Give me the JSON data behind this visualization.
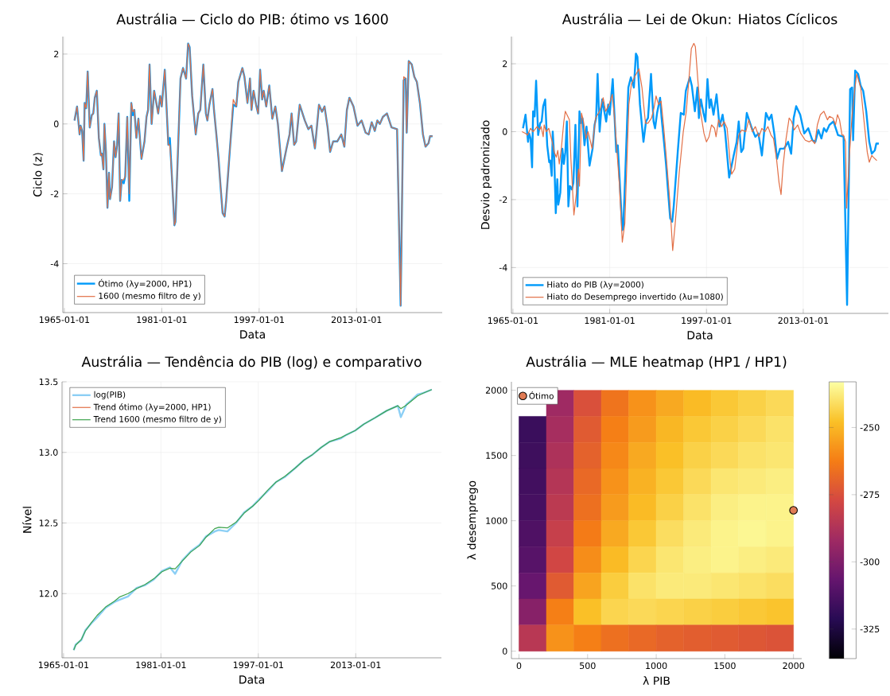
{
  "chart_data": [
    {
      "type": "line",
      "title": "Austrália — Ciclo do PIB: ótimo vs 1600",
      "xlabel": "Data",
      "ylabel": "Ciclo (z)",
      "x": [
        "1966-09",
        "1967-02",
        "1967-07",
        "1967-09",
        "1967-12",
        "1968-03",
        "1968-05",
        "1968-08",
        "1968-11",
        "1969-03",
        "1969-07",
        "1969-10",
        "1970-01",
        "1970-05",
        "1970-09",
        "1971-01",
        "1971-03",
        "1971-06",
        "1971-08",
        "1971-11",
        "1972-02",
        "1972-05",
        "1972-07",
        "1972-11",
        "1973-03",
        "1973-06",
        "1973-09",
        "1973-12",
        "1974-03",
        "1974-06",
        "1974-10",
        "1975-01",
        "1975-05",
        "1975-09",
        "1976-01",
        "1976-04",
        "1976-07",
        "1976-11",
        "1977-03",
        "1977-09",
        "1978-03",
        "1978-07",
        "1978-10",
        "1979-01",
        "1979-05",
        "1979-10",
        "1980-06",
        "1980-10",
        "1981-01",
        "1981-07",
        "1982-02",
        "1982-05",
        "1982-09",
        "1983-02",
        "1983-04",
        "1983-08",
        "1984-02",
        "1984-07",
        "1985-01",
        "1985-05",
        "1985-08",
        "1986-01",
        "1986-08",
        "1987-01",
        "1987-05",
        "1987-11",
        "1988-04",
        "1988-07",
        "1988-11",
        "1989-05",
        "1989-08",
        "1990-01",
        "1990-05",
        "1990-08",
        "1991-01",
        "1991-05",
        "1991-08",
        "1992-04",
        "1992-10",
        "1993-04",
        "1993-08",
        "1994-04",
        "1994-08",
        "1995-02",
        "1995-07",
        "1995-10",
        "1996-02",
        "1996-07",
        "1996-11",
        "1997-03",
        "1997-07",
        "1997-10",
        "1998-03",
        "1998-09",
        "1999-03",
        "1999-09",
        "2000-02",
        "2000-10",
        "2001-07",
        "2002-01",
        "2002-05",
        "2002-10",
        "2003-02",
        "2003-09",
        "2004-07",
        "2005-02",
        "2005-08",
        "2006-03",
        "2006-11",
        "2007-05",
        "2007-10",
        "2008-04",
        "2008-09",
        "2009-03",
        "2009-11",
        "2010-07",
        "2011-01",
        "2011-06",
        "2011-11",
        "2012-07",
        "2013-03",
        "2013-11",
        "2014-07",
        "2015-01",
        "2015-07",
        "2016-01",
        "2016-06",
        "2016-11",
        "2017-05",
        "2018-01",
        "2018-10",
        "2019-09",
        "2020-04",
        "2020-10",
        "2021-02",
        "2021-04",
        "2021-08",
        "2022-02",
        "2022-07",
        "2022-12",
        "2023-06",
        "2023-12",
        "2024-05",
        "2024-11",
        "2025-02",
        "2025-07"
      ],
      "series": [
        {
          "name": "Ótimo (λy=2000, HP1)",
          "color": "#009afa",
          "values": [
            0.1,
            0.5,
            -0.3,
            -0.05,
            -0.2,
            -1.05,
            0.6,
            0.45,
            1.5,
            -0.1,
            0.25,
            0.3,
            0.75,
            0.95,
            -0.4,
            -0.9,
            -0.85,
            -1.3,
            0,
            -0.8,
            -2.4,
            -1.4,
            -2.15,
            -1.8,
            -0.5,
            -0.95,
            -0.6,
            0.3,
            -2.2,
            -1.6,
            -1.7,
            -1.5,
            0.2,
            -2.2,
            0.6,
            0.25,
            0.4,
            -0.4,
            0.15,
            -1.0,
            -0.5,
            0.2,
            0.4,
            1.7,
            0.0,
            0.95,
            0.3,
            0.8,
            0.5,
            1.55,
            -0.6,
            -0.4,
            -1.5,
            -2.9,
            -2.8,
            -1.2,
            1.3,
            1.6,
            1.3,
            2.3,
            2.2,
            0.8,
            -0.3,
            0.3,
            0.4,
            1.7,
            0.3,
            0.1,
            0.55,
            1.0,
            0.4,
            -0.35,
            -1.0,
            -1.6,
            -2.55,
            -2.65,
            -2.2,
            -0.6,
            0.55,
            0.5,
            1.2,
            1.6,
            1.35,
            0.6,
            1.3,
            0.4,
            0.95,
            0.55,
            0.3,
            1.55,
            0.7,
            0.95,
            0.5,
            1.1,
            0.15,
            0.5,
            0.0,
            -1.35,
            -0.7,
            -0.3,
            0.3,
            -0.6,
            -0.5,
            0.55,
            0.1,
            -0.15,
            -0.05,
            -0.7,
            0.55,
            0.35,
            0.5,
            -0.1,
            -0.8,
            -0.5,
            -0.5,
            -0.3,
            -0.65,
            0.4,
            0.75,
            0.5,
            -0.05,
            0.1,
            -0.25,
            -0.3,
            0.05,
            -0.2,
            0.1,
            0.0,
            0.2,
            0.3,
            -0.1,
            -0.15,
            -5.2,
            1.25,
            1.3,
            -0.25,
            1.8,
            1.7,
            1.35,
            1.2,
            0.6,
            -0.3,
            -0.65,
            -0.55,
            -0.35,
            -0.35
          ]
        },
        {
          "name": "1600 (mesmo filtro de y)",
          "color": "#e26f46",
          "values": [
            0.1,
            0.5,
            -0.3,
            -0.05,
            -0.2,
            -1.05,
            0.6,
            0.45,
            1.5,
            -0.1,
            0.25,
            0.3,
            0.75,
            0.95,
            -0.4,
            -0.9,
            -0.85,
            -1.3,
            0,
            -0.8,
            -2.4,
            -1.4,
            -2.15,
            -1.8,
            -0.5,
            -0.95,
            -0.6,
            0.3,
            -2.2,
            -1.6,
            -1.6,
            -1.5,
            0.2,
            -2.0,
            0.6,
            0.35,
            0.4,
            -0.4,
            0.15,
            -1.0,
            -0.5,
            0.2,
            0.4,
            1.7,
            0.0,
            0.95,
            0.3,
            0.8,
            0.5,
            1.55,
            -0.6,
            -0.6,
            -1.5,
            -2.9,
            -2.8,
            -1.2,
            1.3,
            1.6,
            1.3,
            2.3,
            2.2,
            0.8,
            -0.3,
            0.3,
            0.4,
            1.7,
            0.3,
            0.1,
            0.55,
            1.0,
            0.4,
            -0.35,
            -1.0,
            -1.6,
            -2.55,
            -2.65,
            -2.2,
            -0.6,
            0.7,
            0.5,
            1.2,
            1.6,
            1.35,
            0.6,
            1.3,
            0.4,
            0.95,
            0.55,
            0.3,
            1.55,
            0.7,
            0.95,
            0.5,
            1.1,
            0.15,
            0.5,
            0.0,
            -1.35,
            -0.7,
            -0.3,
            0.3,
            -0.6,
            -0.5,
            0.55,
            0.1,
            -0.15,
            -0.05,
            -0.7,
            0.55,
            0.35,
            0.5,
            -0.1,
            -0.8,
            -0.5,
            -0.5,
            -0.3,
            -0.65,
            0.4,
            0.75,
            0.5,
            -0.05,
            0.1,
            -0.25,
            -0.3,
            0.05,
            -0.2,
            0.1,
            0.0,
            0.2,
            0.3,
            -0.1,
            -0.15,
            -5.2,
            1.35,
            1.3,
            -0.25,
            1.8,
            1.7,
            1.35,
            1.2,
            0.6,
            -0.3,
            -0.65,
            -0.55,
            -0.35,
            -0.35
          ]
        }
      ],
      "xlim": [
        "1964-10",
        "2027-02"
      ],
      "ylim": [
        -5.4,
        2.5
      ],
      "xticks": [
        "1965-01-01",
        "1981-01-01",
        "1997-01-01",
        "2013-01-01"
      ],
      "yticks": [
        -4,
        -2,
        0,
        2
      ],
      "grid": true,
      "legend": "bottom left"
    },
    {
      "type": "line",
      "title": "Austrália — Lei de Okun: Hiatos Cíclicos",
      "xlabel": "Data",
      "ylabel": "Desvio padronizado",
      "x": [
        "1966-09",
        "1967-02",
        "1967-07",
        "1967-09",
        "1967-12",
        "1968-03",
        "1968-05",
        "1968-08",
        "1968-11",
        "1969-03",
        "1969-07",
        "1969-10",
        "1970-01",
        "1970-05",
        "1970-09",
        "1971-01",
        "1971-03",
        "1971-06",
        "1971-08",
        "1971-11",
        "1972-02",
        "1972-05",
        "1972-07",
        "1972-11",
        "1973-03",
        "1973-06",
        "1973-09",
        "1973-12",
        "1974-03",
        "1974-06",
        "1974-10",
        "1975-01",
        "1975-05",
        "1975-09",
        "1976-01",
        "1976-04",
        "1976-07",
        "1976-11",
        "1977-03",
        "1977-09",
        "1978-03",
        "1978-07",
        "1978-10",
        "1979-01",
        "1979-05",
        "1979-10",
        "1980-06",
        "1980-10",
        "1981-01",
        "1981-07",
        "1982-02",
        "1982-05",
        "1982-09",
        "1983-02",
        "1983-04",
        "1983-08",
        "1984-02",
        "1984-07",
        "1985-01",
        "1985-05",
        "1985-08",
        "1986-01",
        "1986-08",
        "1987-01",
        "1987-05",
        "1987-11",
        "1988-04",
        "1988-07",
        "1988-11",
        "1989-05",
        "1989-08",
        "1990-01",
        "1990-05",
        "1990-08",
        "1991-01",
        "1991-05",
        "1991-08",
        "1992-04",
        "1992-10",
        "1993-04",
        "1993-08",
        "1994-04",
        "1994-08",
        "1995-02",
        "1995-07",
        "1995-10",
        "1996-02",
        "1996-07",
        "1996-11",
        "1997-03",
        "1997-07",
        "1997-10",
        "1998-03",
        "1998-09",
        "1999-03",
        "1999-09",
        "2000-02",
        "2000-10",
        "2001-07",
        "2002-01",
        "2002-05",
        "2002-10",
        "2003-02",
        "2003-09",
        "2004-07",
        "2005-02",
        "2005-08",
        "2006-03",
        "2006-11",
        "2007-05",
        "2007-10",
        "2008-04",
        "2008-09",
        "2009-03",
        "2009-11",
        "2010-07",
        "2011-01",
        "2011-06",
        "2011-11",
        "2012-07",
        "2013-03",
        "2013-11",
        "2014-07",
        "2015-01",
        "2015-07",
        "2016-01",
        "2016-06",
        "2016-11",
        "2017-05",
        "2018-01",
        "2018-10",
        "2019-09",
        "2020-04",
        "2020-10",
        "2021-02",
        "2021-04",
        "2021-08",
        "2022-02",
        "2022-07",
        "2022-12",
        "2023-06",
        "2023-12",
        "2024-05",
        "2024-11",
        "2025-02",
        "2025-07"
      ],
      "series": [
        {
          "name": "Hiato do PIB (λy=2000)",
          "color": "#009afa",
          "values": [
            0.1,
            0.5,
            -0.3,
            -0.05,
            -0.2,
            -1.05,
            0.6,
            0.45,
            1.5,
            -0.1,
            0.25,
            0.3,
            0.75,
            0.95,
            -0.4,
            -0.9,
            -0.85,
            -1.3,
            0,
            -0.8,
            -2.4,
            -1.4,
            -2.15,
            -1.8,
            -0.5,
            -0.95,
            -0.6,
            0.3,
            -2.2,
            -1.6,
            -1.7,
            -1.5,
            0.2,
            -2.2,
            0.6,
            0.25,
            0.4,
            -0.4,
            0.15,
            -1.0,
            -0.5,
            0.2,
            0.4,
            1.7,
            0.0,
            0.95,
            0.3,
            0.8,
            0.5,
            1.55,
            -0.6,
            -0.4,
            -1.5,
            -2.9,
            -2.8,
            -1.2,
            1.3,
            1.6,
            1.3,
            2.3,
            2.2,
            0.8,
            -0.3,
            0.3,
            0.4,
            1.7,
            0.3,
            0.1,
            0.55,
            1.0,
            0.4,
            -0.35,
            -1.0,
            -1.6,
            -2.55,
            -2.65,
            -2.2,
            -0.6,
            0.55,
            0.5,
            1.2,
            1.6,
            1.35,
            0.6,
            1.3,
            0.4,
            0.95,
            0.55,
            0.3,
            1.55,
            0.7,
            0.95,
            0.5,
            1.1,
            0.15,
            0.5,
            0.0,
            -1.35,
            -0.7,
            -0.3,
            0.3,
            -0.6,
            -0.5,
            0.55,
            0.1,
            -0.15,
            -0.05,
            -0.7,
            0.55,
            0.35,
            0.5,
            -0.1,
            -0.8,
            -0.5,
            -0.5,
            -0.3,
            -0.65,
            0.4,
            0.75,
            0.5,
            -0.05,
            0.1,
            -0.25,
            -0.3,
            0.05,
            -0.2,
            0.1,
            0.0,
            0.2,
            0.3,
            -0.1,
            -0.15,
            -5.1,
            1.25,
            1.3,
            -0.25,
            1.8,
            1.7,
            1.35,
            1.2,
            0.6,
            -0.3,
            -0.65,
            -0.55,
            -0.35,
            -0.35
          ]
        },
        {
          "name": "Hiato do Desemprego invertido (λu=1080)",
          "color": "#e26f46",
          "x": [
            "1966-07",
            "1967-02",
            "1967-06",
            "1967-12",
            "1968-05",
            "1969-01",
            "1969-06",
            "1969-09",
            "1970-01",
            "1970-03",
            "1970-07",
            "1970-12",
            "1971-07",
            "1971-11",
            "1972-03",
            "1972-06",
            "1972-09",
            "1973-01",
            "1973-06",
            "1973-09",
            "1974-05",
            "1974-08",
            "1975-02",
            "1975-07",
            "1975-11",
            "1976-01",
            "1976-05",
            "1976-09",
            "1977-02",
            "1977-06",
            "1977-11",
            "1978-02",
            "1978-09",
            "1979-05",
            "1979-12",
            "1980-05",
            "1980-12",
            "1981-06",
            "1981-11",
            "1982-03",
            "1982-08",
            "1983-02",
            "1983-07",
            "1984-03",
            "1984-08",
            "1985-02",
            "1985-11",
            "1986-05",
            "1986-12",
            "1987-05",
            "1987-12",
            "1988-05",
            "1988-09",
            "1989-02",
            "1989-07",
            "1989-12",
            "1990-05",
            "1990-12",
            "1991-06",
            "1991-11",
            "1992-07",
            "1993-03",
            "1993-09",
            "1994-03",
            "1994-07",
            "1994-12",
            "1995-03",
            "1995-08",
            "1996-01",
            "1996-08",
            "1997-01",
            "1997-06",
            "1997-11",
            "1998-05",
            "1998-08",
            "1999-01",
            "1999-07",
            "1999-12",
            "2000-06",
            "2000-12",
            "2001-03",
            "2001-09",
            "2002-05",
            "2002-11",
            "2003-07",
            "2004-01",
            "2004-08",
            "2005-02",
            "2005-09",
            "2006-03",
            "2006-09",
            "2007-03",
            "2007-09",
            "2008-02",
            "2008-08",
            "2009-01",
            "2009-05",
            "2009-09",
            "2010-03",
            "2010-09",
            "2011-02",
            "2011-07",
            "2012-02",
            "2012-08",
            "2013-05",
            "2014-01",
            "2014-06",
            "2014-12",
            "2015-05",
            "2015-11",
            "2016-06",
            "2017-01",
            "2017-05",
            "2017-12",
            "2018-05",
            "2018-09",
            "2019-01",
            "2019-06",
            "2019-09",
            "2020-01",
            "2020-03",
            "2020-09",
            "2021-02",
            "2021-07",
            "2021-11",
            "2022-03",
            "2022-07",
            "2023-01",
            "2023-08",
            "2023-12",
            "2024-05",
            "2024-08",
            "2025-03"
          ],
          "values": [
            0.0,
            -0.05,
            -0.1,
            0.1,
            0.0,
            0.15,
            0.05,
            0.15,
            -0.15,
            0.2,
            0.0,
            0.1,
            -0.3,
            -0.6,
            -0.75,
            -0.55,
            -0.95,
            -0.5,
            0.3,
            0.6,
            0.35,
            -0.8,
            -2.45,
            -1.8,
            -1.1,
            -1.6,
            0.55,
            0.3,
            -0.2,
            0.0,
            -0.3,
            -0.5,
            0.4,
            0.6,
            1.0,
            0.6,
            0.8,
            1.1,
            0.35,
            -0.5,
            -1.5,
            -3.25,
            -2.7,
            0.8,
            1.4,
            1.6,
            1.85,
            1.3,
            0.25,
            0.25,
            0.4,
            0.7,
            1.05,
            0.8,
            0.9,
            0.15,
            -0.7,
            -2.0,
            -3.5,
            -2.7,
            -1.2,
            0.0,
            0.6,
            1.7,
            2.45,
            2.6,
            2.5,
            1.5,
            0.6,
            -0.05,
            -0.3,
            -0.15,
            0.2,
            0.1,
            -0.15,
            0.35,
            0.15,
            0.3,
            0.1,
            -0.9,
            -1.25,
            -1.1,
            -0.1,
            0.05,
            0.0,
            0.35,
            0.0,
            0.15,
            -0.15,
            0.1,
            0.0,
            0.15,
            -0.1,
            -0.2,
            -0.8,
            -1.5,
            -1.85,
            -1.0,
            -0.2,
            0.4,
            0.3,
            0.05,
            0.2,
            -0.05,
            -0.25,
            -0.3,
            -0.25,
            -0.35,
            0.2,
            0.5,
            0.6,
            0.35,
            0.45,
            0.4,
            0.2,
            0.5,
            0.35,
            -0.1,
            -0.1,
            -0.3,
            -2.25,
            -0.6,
            0.5,
            1.2,
            1.7,
            1.5,
            1.3,
            0.4,
            -0.6,
            -0.9,
            -0.7,
            -0.75,
            -0.85
          ]
        }
      ],
      "xlim": [
        "1964-10",
        "2027-02"
      ],
      "ylim": [
        -5.35,
        2.8
      ],
      "xticks": [
        "1965-01-01",
        "1981-01-01",
        "1997-01-01",
        "2013-01-01"
      ],
      "yticks": [
        -4,
        -2,
        0,
        2
      ],
      "grid": true,
      "legend": "bottom left"
    },
    {
      "type": "line",
      "title": "Austrália — Tendência do PIB (log) e comparativo",
      "xlabel": "Data",
      "ylabel": "Nível",
      "x": [
        "1966-09",
        "1967-01",
        "1967-12",
        "1968-08",
        "1969-08",
        "1970-07",
        "1971-12",
        "1973-05",
        "1974-03",
        "1975-08",
        "1977-01",
        "1978-06",
        "1979-11",
        "1981-03",
        "1982-07",
        "1983-05",
        "1984-07",
        "1985-12",
        "1987-05",
        "1988-06",
        "1989-11",
        "1990-07",
        "1991-12",
        "1993-05",
        "1994-09",
        "1996-02",
        "1997-02",
        "1998-07",
        "1999-12",
        "2001-05",
        "2003-02",
        "2004-07",
        "2005-12",
        "2007-05",
        "2008-09",
        "2010-08",
        "2011-07",
        "2012-12",
        "2014-05",
        "2016-03",
        "2018-02",
        "2019-12",
        "2020-06",
        "2021-05",
        "2022-03",
        "2023-03",
        "2024-02",
        "2025-07"
      ],
      "series": [
        {
          "name": "log(PIB)",
          "color": "#8ccff5",
          "values": [
            11.6,
            11.64,
            11.67,
            11.74,
            11.79,
            11.83,
            11.9,
            11.94,
            11.955,
            11.98,
            12.04,
            12.06,
            12.1,
            12.16,
            12.185,
            12.14,
            12.235,
            12.3,
            12.345,
            12.405,
            12.44,
            12.45,
            12.44,
            12.5,
            12.575,
            12.62,
            12.665,
            12.725,
            12.79,
            12.825,
            12.89,
            12.945,
            12.985,
            13.035,
            13.075,
            13.1,
            13.125,
            13.155,
            13.2,
            13.245,
            13.295,
            13.33,
            13.25,
            13.34,
            13.37,
            13.41,
            13.42,
            13.445
          ]
        },
        {
          "name": "Trend ótimo (λy=2000, HP1)",
          "color": "#e26f46",
          "values": [
            null,
            null,
            null,
            null,
            null,
            null,
            null,
            null,
            null,
            null,
            null,
            null,
            null,
            null,
            null,
            null,
            null,
            null,
            null,
            null,
            null,
            null,
            null,
            null,
            null,
            null,
            null,
            null,
            null,
            null,
            null,
            null,
            null,
            null,
            null,
            null,
            null,
            null,
            null,
            null,
            null,
            null,
            null,
            null,
            null,
            null,
            null,
            null
          ]
        },
        {
          "name": "Trend 1600 (mesmo filtro de y)",
          "color": "#3ea44e",
          "values": [
            11.6,
            11.635,
            11.675,
            11.735,
            11.795,
            11.845,
            11.905,
            11.945,
            11.975,
            12.0,
            12.035,
            12.065,
            12.105,
            12.155,
            12.18,
            12.175,
            12.23,
            12.295,
            12.34,
            12.4,
            12.46,
            12.47,
            12.465,
            12.505,
            12.57,
            12.62,
            12.66,
            12.73,
            12.79,
            12.83,
            12.89,
            12.945,
            12.985,
            13.035,
            13.075,
            13.105,
            13.125,
            13.155,
            13.2,
            13.245,
            13.295,
            13.33,
            13.31,
            13.335,
            13.365,
            13.4,
            13.42,
            13.445
          ]
        }
      ],
      "xlim": [
        "1964-10",
        "2027-02"
      ],
      "ylim": [
        11.545,
        13.5
      ],
      "xticks": [
        "1965-01-01",
        "1981-01-01",
        "1997-01-01",
        "2013-01-01"
      ],
      "yticks": [
        {
          "value": 12.0,
          "label": "12.0"
        },
        {
          "value": 12.5,
          "label": "12.5"
        },
        {
          "value": 13.0,
          "label": "13.0"
        },
        {
          "value": 13.5,
          "label": "13.5"
        }
      ],
      "grid": true,
      "legend": "top left"
    },
    {
      "type": "heatmap",
      "title": "Austrália — MLE heatmap (HP1 / HP1)",
      "xlabel": "λ PIB",
      "ylabel": "λ desemprego",
      "x": [
        100,
        300,
        500,
        700,
        900,
        1100,
        1300,
        1500,
        1700,
        1900
      ],
      "cells": [
        [
          null,
          -292,
          -275,
          -265,
          -258,
          -253,
          -249,
          -246,
          -244,
          -242
        ],
        [
          -317,
          -290,
          -272,
          -262,
          -256,
          -250,
          -246,
          -244,
          -242,
          -240
        ],
        [
          -316,
          -288,
          -270,
          -260,
          -253,
          -248,
          -244,
          -242,
          -240,
          -239
        ],
        [
          -315,
          -286,
          -268,
          -258,
          -251,
          -246,
          -242,
          -239,
          -238,
          -237
        ],
        [
          -314,
          -284,
          -266,
          -256,
          -249,
          -244,
          -240,
          -237,
          -236,
          -236
        ],
        [
          -312,
          -281,
          -263,
          -253,
          -246,
          -241,
          -238,
          -236,
          -235,
          -236
        ],
        [
          -310,
          -278,
          -259,
          -249,
          -243,
          -239,
          -237,
          -236,
          -237,
          -238
        ],
        [
          -306,
          -272,
          -254,
          -245,
          -240,
          -238,
          -238,
          -239,
          -240,
          -241
        ],
        [
          -298,
          -262,
          -248,
          -243,
          -242,
          -243,
          -244,
          -245,
          -246,
          -247
        ],
        [
          -285,
          -258,
          -262,
          -266,
          -268,
          -270,
          -271,
          -272,
          -273,
          -274
        ]
      ],
      "clim": [
        -336,
        -233
      ],
      "cticks": [
        -250,
        -275,
        -300,
        -325
      ],
      "series": [
        {
          "type": "scatter",
          "name": "Ótimo",
          "color": "#e07b54",
          "x": [
            2000
          ],
          "values": [
            1080
          ]
        }
      ],
      "xlim": [
        -55,
        2060
      ],
      "ylim": [
        -57,
        2065
      ],
      "xticks": [
        0,
        500,
        1000,
        1500,
        2000
      ],
      "yticks": [
        0,
        500,
        1000,
        1500,
        2000
      ],
      "legend": "top left"
    }
  ]
}
